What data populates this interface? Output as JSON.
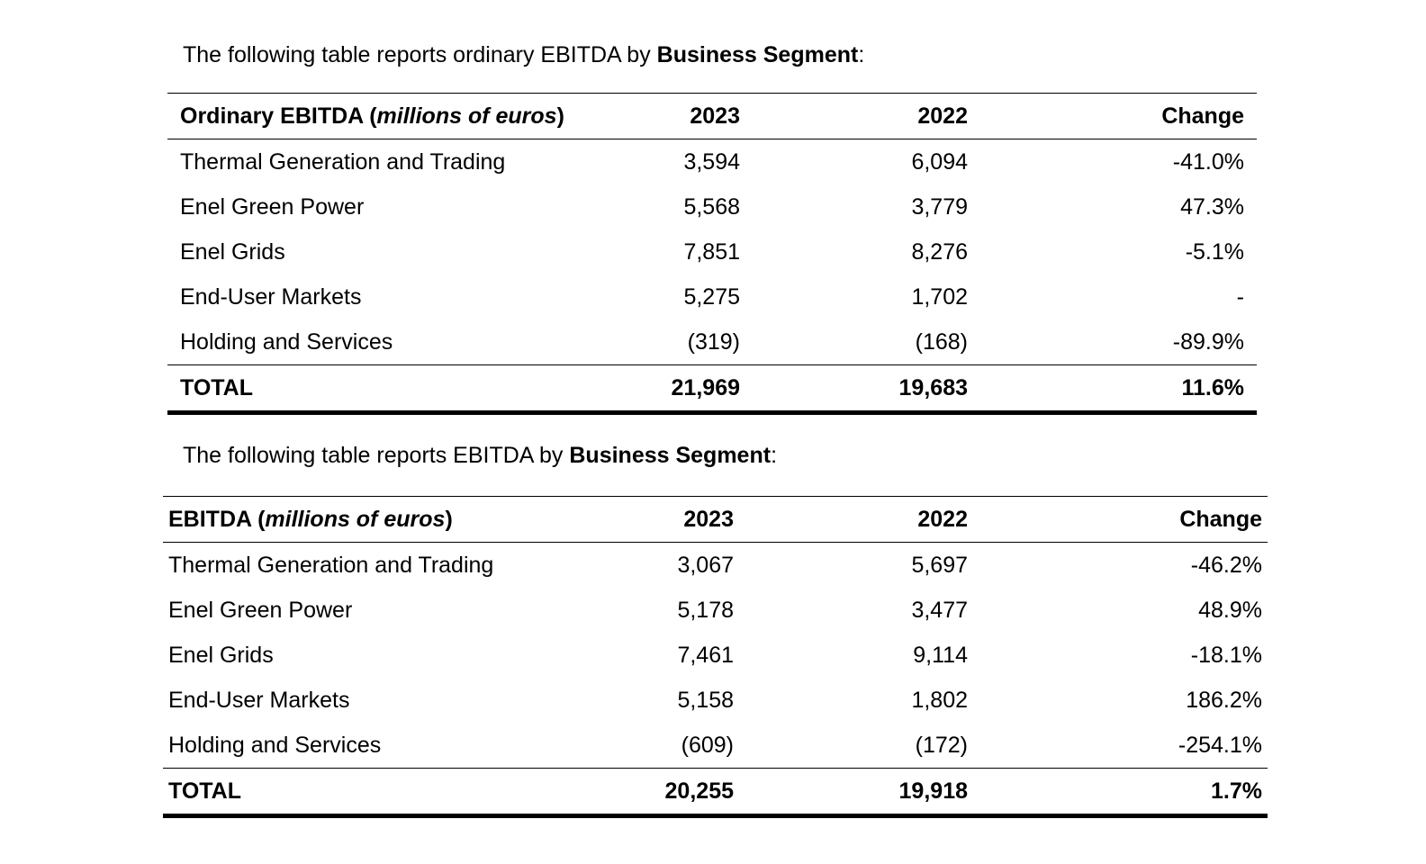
{
  "section1": {
    "intro_prefix": "The following table reports ordinary EBITDA by ",
    "intro_bold": "Business Segment",
    "intro_suffix": ":",
    "header": {
      "label_bold": "Ordinary EBITDA (",
      "label_italic": "millions of euros",
      "label_close": ")",
      "col_2023": "2023",
      "col_2022": "2022",
      "col_change": "Change"
    },
    "rows": [
      {
        "name": "Thermal Generation and Trading",
        "y2023": "3,594",
        "y2022": "6,094",
        "change": "-41.0%"
      },
      {
        "name": "Enel Green Power",
        "y2023": "5,568",
        "y2022": "3,779",
        "change": "47.3%"
      },
      {
        "name": "Enel Grids",
        "y2023": "7,851",
        "y2022": "8,276",
        "change": "-5.1%"
      },
      {
        "name": "End-User Markets",
        "y2023": "5,275",
        "y2022": "1,702",
        "change": "-"
      },
      {
        "name": "Holding and Services",
        "y2023": "(319)",
        "y2022": "(168)",
        "change": "-89.9%"
      }
    ],
    "total": {
      "name": "TOTAL",
      "y2023": "21,969",
      "y2022": "19,683",
      "change": "11.6%"
    }
  },
  "section2": {
    "intro_prefix": "The following table reports EBITDA by ",
    "intro_bold": "Business Segment",
    "intro_suffix": ":",
    "header": {
      "label_bold": "EBITDA (",
      "label_italic": "millions of euros",
      "label_close": ")",
      "col_2023": "2023",
      "col_2022": "2022",
      "col_change": "Change"
    },
    "rows": [
      {
        "name": "Thermal Generation and Trading",
        "y2023": "3,067",
        "y2022": "5,697",
        "change": "-46.2%"
      },
      {
        "name": "Enel Green Power",
        "y2023": "5,178",
        "y2022": "3,477",
        "change": "48.9%"
      },
      {
        "name": "Enel Grids",
        "y2023": "7,461",
        "y2022": "9,114",
        "change": "-18.1%"
      },
      {
        "name": "End-User Markets",
        "y2023": "5,158",
        "y2022": "1,802",
        "change": "186.2%"
      },
      {
        "name": "Holding and Services",
        "y2023": "(609)",
        "y2022": "(172)",
        "change": "-254.1%"
      }
    ],
    "total": {
      "name": "TOTAL",
      "y2023": "20,255",
      "y2022": "19,918",
      "change": "1.7%"
    }
  }
}
